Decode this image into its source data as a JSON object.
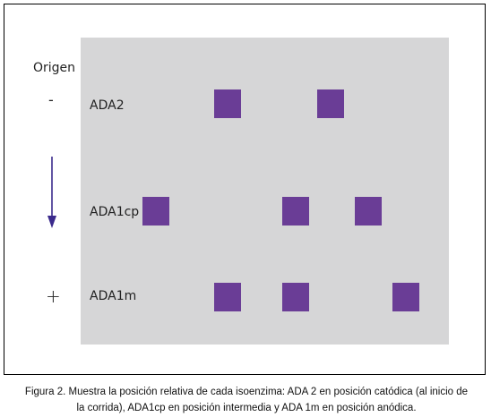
{
  "figure": {
    "origin_label": "Origen",
    "minus_sign": "-",
    "plus_sign": "+",
    "direction_arrow_icon": "arrow-down-icon",
    "band_color": "#6a3d96",
    "gel_color": "#d6d6d7",
    "rows": [
      {
        "label": "ADA2"
      },
      {
        "label": "ADA1cp"
      },
      {
        "label": "ADA1m"
      }
    ]
  },
  "caption": {
    "line1": "Figura 2. Muestra la  posición relativa de cada isoenzima: ADA 2 en posición catódica (al inicio de",
    "line2": "la corrida), ADA1cp en posición intermedia y ADA 1m en posición anódica."
  }
}
